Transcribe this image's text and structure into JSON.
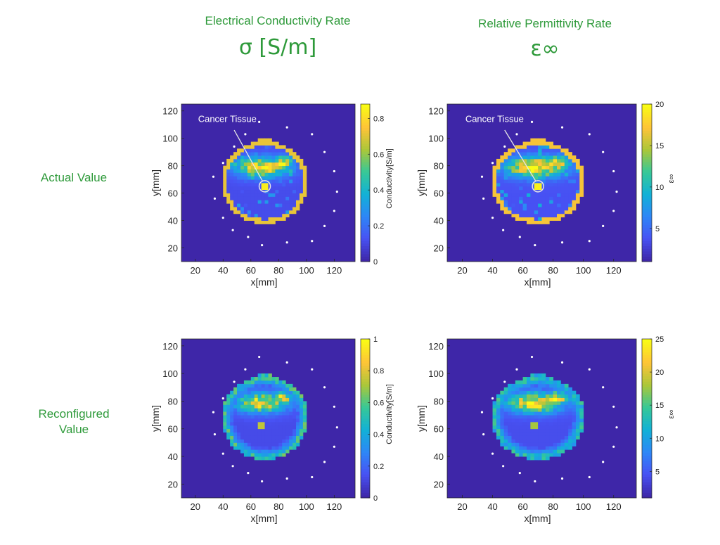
{
  "columns": [
    {
      "title": "Electrical Conductivity Rate",
      "symbol": "σ [S/m]"
    },
    {
      "title": "Relative Permittivity Rate",
      "symbol": "ε∞"
    }
  ],
  "rows": [
    {
      "label_line1": "Actual Value",
      "label_line2": ""
    },
    {
      "label_line1": "Reconfigured",
      "label_line2": "Value"
    }
  ],
  "colors": {
    "title_green": "#2e9a3a",
    "background_blue": "#3e26a8",
    "ring_yellow": "#f9c338",
    "tumor_yellow": "#f5e724"
  },
  "chart_data": [
    {
      "type": "heatmap",
      "id": "actual-conductivity",
      "xlabel": "x[mm]",
      "ylabel": "y[mm]",
      "xlim": [
        10,
        135
      ],
      "ylim": [
        10,
        125
      ],
      "xticks": [
        20,
        40,
        60,
        80,
        100,
        120
      ],
      "yticks": [
        20,
        40,
        60,
        80,
        100,
        120
      ],
      "colorbar": {
        "label": "Conductivity[S/m]",
        "range": [
          0,
          0.88
        ],
        "ticks": [
          0,
          0.2,
          0.4,
          0.6,
          0.8
        ],
        "tick_labels": [
          "0",
          "0.2",
          "0.4",
          "0.6",
          "0.8"
        ]
      },
      "annotation": {
        "text": "Cancer Tissue",
        "target": [
          70,
          65
        ]
      },
      "ring": {
        "center": [
          70,
          68
        ],
        "radius_x": 30,
        "radius_y": 29,
        "value": 0.72
      },
      "tumor": {
        "center": [
          70,
          65
        ],
        "size": 5,
        "value": 0.85
      },
      "tissue_mean": 0.55,
      "antennas": [
        [
          66,
          112
        ],
        [
          86,
          108
        ],
        [
          104,
          103
        ],
        [
          56,
          103
        ],
        [
          48,
          94
        ],
        [
          113,
          90
        ],
        [
          40,
          82
        ],
        [
          120,
          76
        ],
        [
          33,
          72
        ],
        [
          122,
          61
        ],
        [
          34,
          56
        ],
        [
          120,
          47
        ],
        [
          40,
          42
        ],
        [
          113,
          36
        ],
        [
          47,
          33
        ],
        [
          104,
          25
        ],
        [
          58,
          28
        ],
        [
          86,
          24
        ],
        [
          68,
          22
        ]
      ]
    },
    {
      "type": "heatmap",
      "id": "actual-permittivity",
      "xlabel": "x[mm]",
      "ylabel": "y[mm]",
      "xlim": [
        10,
        135
      ],
      "ylim": [
        10,
        125
      ],
      "xticks": [
        20,
        40,
        60,
        80,
        100,
        120
      ],
      "yticks": [
        20,
        40,
        60,
        80,
        100,
        120
      ],
      "colorbar": {
        "label": "ε∞",
        "range": [
          1,
          20
        ],
        "ticks": [
          5,
          10,
          15,
          20
        ],
        "tick_labels": [
          "5",
          "10",
          "15",
          "20"
        ]
      },
      "annotation": {
        "text": "Cancer Tissue",
        "target": [
          70,
          65
        ]
      },
      "ring": {
        "center": [
          70,
          68
        ],
        "radius_x": 30,
        "radius_y": 29,
        "value": 17
      },
      "tumor": {
        "center": [
          70,
          65
        ],
        "size": 5,
        "value": 19.5
      },
      "tissue_mean": 14,
      "antennas": [
        [
          66,
          112
        ],
        [
          86,
          108
        ],
        [
          104,
          103
        ],
        [
          56,
          103
        ],
        [
          48,
          94
        ],
        [
          113,
          90
        ],
        [
          40,
          82
        ],
        [
          120,
          76
        ],
        [
          33,
          72
        ],
        [
          122,
          61
        ],
        [
          34,
          56
        ],
        [
          120,
          47
        ],
        [
          40,
          42
        ],
        [
          113,
          36
        ],
        [
          47,
          33
        ],
        [
          104,
          25
        ],
        [
          58,
          28
        ],
        [
          86,
          24
        ],
        [
          68,
          22
        ]
      ]
    },
    {
      "type": "heatmap",
      "id": "reconfigured-conductivity",
      "xlabel": "x[mm]",
      "ylabel": "y[mm]",
      "xlim": [
        10,
        135
      ],
      "ylim": [
        10,
        125
      ],
      "xticks": [
        20,
        40,
        60,
        80,
        100,
        120
      ],
      "yticks": [
        20,
        40,
        60,
        80,
        100,
        120
      ],
      "colorbar": {
        "label": "Conductivity[S/m]",
        "range": [
          0,
          1
        ],
        "ticks": [
          0,
          0.2,
          0.4,
          0.6,
          0.8,
          1
        ],
        "tick_labels": [
          "0",
          "0.2",
          "0.4",
          "0.6",
          "0.8",
          "1"
        ]
      },
      "ring": {
        "center": [
          70,
          68
        ],
        "radius_x": 30,
        "radius_y": 29,
        "value": 0.6
      },
      "tumor": {
        "center": [
          68,
          62
        ],
        "size": 6,
        "value": 0.75
      },
      "tissue_mean": 0.6,
      "antennas": [
        [
          66,
          112
        ],
        [
          86,
          108
        ],
        [
          104,
          103
        ],
        [
          56,
          103
        ],
        [
          48,
          94
        ],
        [
          113,
          90
        ],
        [
          40,
          82
        ],
        [
          120,
          76
        ],
        [
          33,
          72
        ],
        [
          122,
          61
        ],
        [
          34,
          56
        ],
        [
          120,
          47
        ],
        [
          40,
          42
        ],
        [
          113,
          36
        ],
        [
          47,
          33
        ],
        [
          104,
          25
        ],
        [
          58,
          28
        ],
        [
          86,
          24
        ],
        [
          68,
          22
        ]
      ]
    },
    {
      "type": "heatmap",
      "id": "reconfigured-permittivity",
      "xlabel": "x[mm]",
      "ylabel": "y[mm]",
      "xlim": [
        10,
        135
      ],
      "ylim": [
        10,
        125
      ],
      "xticks": [
        20,
        40,
        60,
        80,
        100,
        120
      ],
      "yticks": [
        20,
        40,
        60,
        80,
        100,
        120
      ],
      "colorbar": {
        "label": "ε∞",
        "range": [
          1,
          25
        ],
        "ticks": [
          5,
          10,
          15,
          20,
          25
        ],
        "tick_labels": [
          "5",
          "10",
          "15",
          "20",
          "25"
        ]
      },
      "ring": {
        "center": [
          70,
          68
        ],
        "radius_x": 30,
        "radius_y": 29,
        "value": 14
      },
      "tumor": {
        "center": [
          68,
          62
        ],
        "size": 6,
        "value": 18
      },
      "tissue_mean": 16,
      "antennas": [
        [
          66,
          112
        ],
        [
          86,
          108
        ],
        [
          104,
          103
        ],
        [
          56,
          103
        ],
        [
          48,
          94
        ],
        [
          113,
          90
        ],
        [
          40,
          82
        ],
        [
          120,
          76
        ],
        [
          33,
          72
        ],
        [
          122,
          61
        ],
        [
          34,
          56
        ],
        [
          120,
          47
        ],
        [
          40,
          42
        ],
        [
          113,
          36
        ],
        [
          47,
          33
        ],
        [
          104,
          25
        ],
        [
          58,
          28
        ],
        [
          86,
          24
        ],
        [
          68,
          22
        ]
      ]
    }
  ]
}
